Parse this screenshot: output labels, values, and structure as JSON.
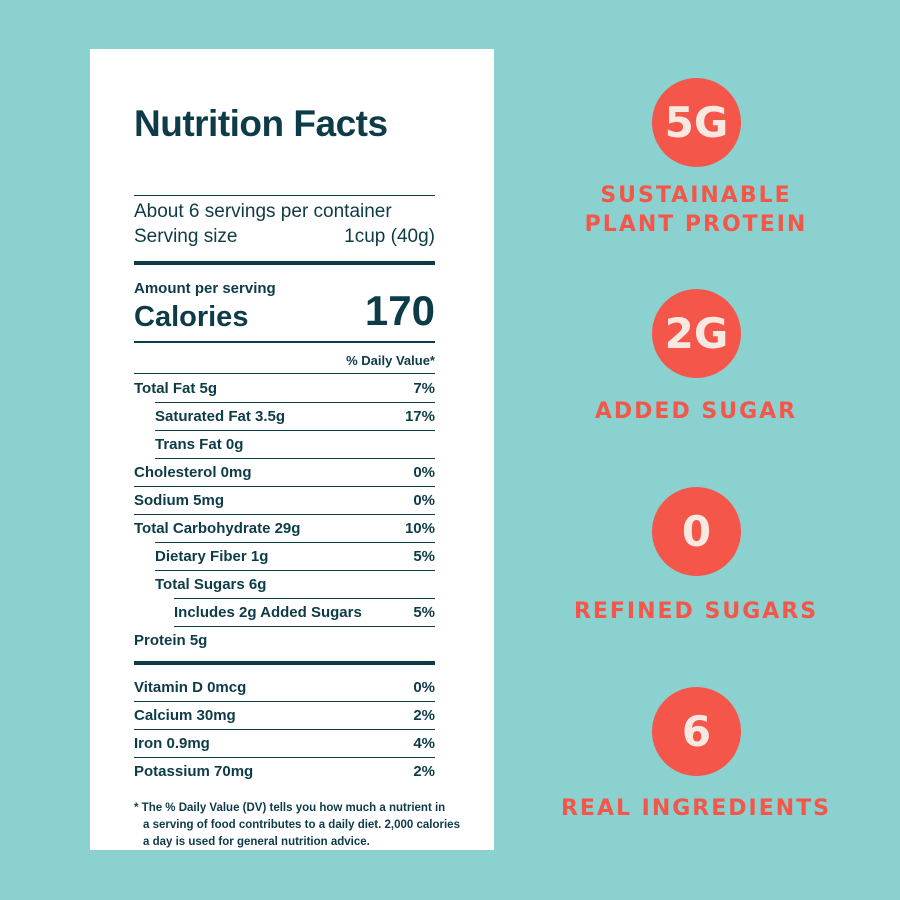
{
  "label": {
    "title": "Nutrition Facts",
    "servings": "About 6 servings per container",
    "serving_size_label": "Serving size",
    "serving_size_value": "1cup (40g)",
    "amount_per_serving": "Amount per serving",
    "calories_label": "Calories",
    "calories_value": "170",
    "dv_header": "% Daily Value*",
    "nutrients": [
      {
        "name": "Total Fat 5g",
        "dv": "7%"
      },
      {
        "name": "Saturated Fat 3.5g",
        "dv": "17%"
      },
      {
        "name": "Trans Fat 0g",
        "dv": ""
      },
      {
        "name": "Cholesterol 0mg",
        "dv": "0%"
      },
      {
        "name": "Sodium 5mg",
        "dv": "0%"
      },
      {
        "name": "Total Carbohydrate 29g",
        "dv": "10%"
      },
      {
        "name": "Dietary Fiber 1g",
        "dv": "5%"
      },
      {
        "name": "Total Sugars 6g",
        "dv": ""
      },
      {
        "name": "Includes 2g Added Sugars",
        "dv": "5%"
      },
      {
        "name": "Protein 5g",
        "dv": ""
      }
    ],
    "vitamins": [
      {
        "name": "Vitamin D 0mcg",
        "dv": "0%"
      },
      {
        "name": "Calcium 30mg",
        "dv": "2%"
      },
      {
        "name": "Iron 0.9mg",
        "dv": "4%"
      },
      {
        "name": "Potassium 70mg",
        "dv": "2%"
      }
    ],
    "footnote": [
      "* The % Daily Value (DV) tells you how much a nutrient in",
      "a serving of food contributes to a daily diet. 2,000 calories",
      "a day is used for general nutrition advice."
    ]
  },
  "highlights": [
    {
      "value": "5G",
      "caption_lines": [
        "SUSTAINABLE",
        "PLANT PROTEIN"
      ]
    },
    {
      "value": "2G",
      "caption_lines": [
        "ADDED SUGAR"
      ]
    },
    {
      "value": "0",
      "caption_lines": [
        "REFINED SUGARS"
      ]
    },
    {
      "value": "6",
      "caption_lines": [
        "REAL INGREDIENTS"
      ]
    }
  ],
  "colors": {
    "background": "#8ad1cf",
    "label_text": "#0d3b47",
    "accent": "#f4564a",
    "badge_text": "#f8e8e2"
  }
}
